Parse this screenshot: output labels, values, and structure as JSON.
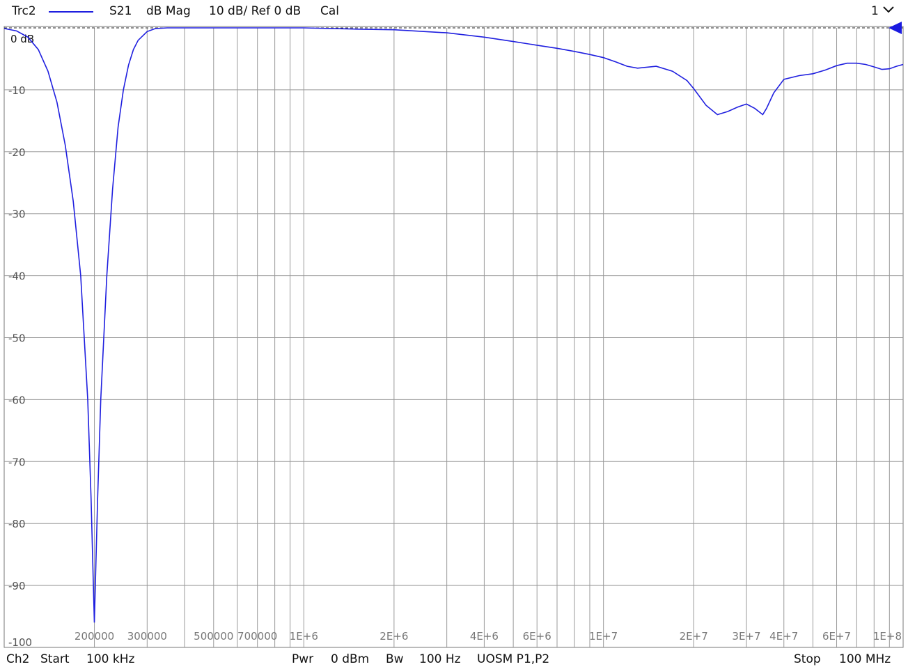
{
  "header": {
    "trace_name": "Trc2",
    "parameter": "S21",
    "format": "dB Mag",
    "scale": "10 dB/ Ref 0 dB",
    "cal_status": "Cal",
    "window_number": "1"
  },
  "footer": {
    "channel": "Ch2",
    "start_label": "Start",
    "start_value": "100 kHz",
    "power_label": "Pwr",
    "power_value": "0 dBm",
    "bw_label": "Bw",
    "bw_value": "100 Hz",
    "port_config": "UOSM P1,P2",
    "stop_label": "Stop",
    "stop_value": "100 MHz"
  },
  "colors": {
    "trace": "#1f1fdf",
    "grid": "#999999",
    "ref_marker": "#1a1ae0"
  },
  "chart_data": {
    "type": "line",
    "x_scale": "log",
    "xlim": [
      100000,
      100000000
    ],
    "ylim": [
      -100,
      0
    ],
    "ref_label": "0 dB",
    "y_ticks": [
      -10,
      -20,
      -30,
      -40,
      -50,
      -60,
      -70,
      -80,
      -90,
      -100
    ],
    "y_tick_labels": [
      "-10",
      "-20",
      "-30",
      "-40",
      "-50",
      "-60",
      "-70",
      "-80",
      "-90",
      "-100"
    ],
    "x_tick_labels": [
      {
        "value": 200000,
        "label": "200000"
      },
      {
        "value": 300000,
        "label": "300000"
      },
      {
        "value": 500000,
        "label": "500000"
      },
      {
        "value": 700000,
        "label": "700000"
      },
      {
        "value": 1000000,
        "label": "1E+6"
      },
      {
        "value": 2000000,
        "label": "2E+6"
      },
      {
        "value": 4000000,
        "label": "4E+6"
      },
      {
        "value": 6000000,
        "label": "6E+6"
      },
      {
        "value": 10000000,
        "label": "1E+7"
      },
      {
        "value": 20000000,
        "label": "2E+7"
      },
      {
        "value": 30000000,
        "label": "3E+7"
      },
      {
        "value": 40000000,
        "label": "4E+7"
      },
      {
        "value": 60000000,
        "label": "6E+7"
      },
      {
        "value": 100000000,
        "label": "1E+8"
      }
    ],
    "series": [
      {
        "x": [
          100000,
          110000,
          120000,
          130000,
          140000,
          150000,
          160000,
          170000,
          180000,
          190000,
          195000,
          200000,
          205000,
          210000,
          220000,
          230000,
          240000,
          250000,
          260000,
          270000,
          280000,
          300000,
          320000,
          350000,
          400000,
          500000,
          700000,
          1000000,
          1500000,
          2000000,
          3000000,
          4000000,
          5000000,
          6000000,
          7000000,
          8000000,
          9000000,
          10000000,
          11000000,
          12000000,
          13000000,
          15000000,
          17000000,
          19000000,
          20000000,
          22000000,
          24000000,
          26000000,
          28000000,
          30000000,
          32000000,
          34000000,
          35000000,
          37000000,
          40000000,
          45000000,
          50000000,
          55000000,
          60000000,
          65000000,
          70000000,
          75000000,
          80000000,
          85000000,
          90000000,
          95000000,
          100000000
        ],
        "y": [
          -0.1,
          -0.5,
          -1.5,
          -3.5,
          -7,
          -12,
          -19,
          -28,
          -40,
          -60,
          -76,
          -96,
          -76,
          -60,
          -40,
          -26,
          -16,
          -10,
          -6,
          -3.5,
          -2,
          -0.6,
          -0.1,
          0,
          0,
          0,
          0,
          0,
          -0.2,
          -0.3,
          -0.8,
          -1.5,
          -2.2,
          -2.8,
          -3.3,
          -3.8,
          -4.3,
          -4.8,
          -5.5,
          -6.2,
          -6.5,
          -6.2,
          -7,
          -8.5,
          -9.8,
          -12.5,
          -14,
          -13.5,
          -12.8,
          -12.3,
          -13,
          -14,
          -13,
          -10.5,
          -8.3,
          -7.7,
          -7.4,
          -6.8,
          -6.1,
          -5.7,
          -5.7,
          -5.9,
          -6.3,
          -6.7,
          -6.6,
          -6.2,
          -5.9
        ]
      }
    ]
  }
}
